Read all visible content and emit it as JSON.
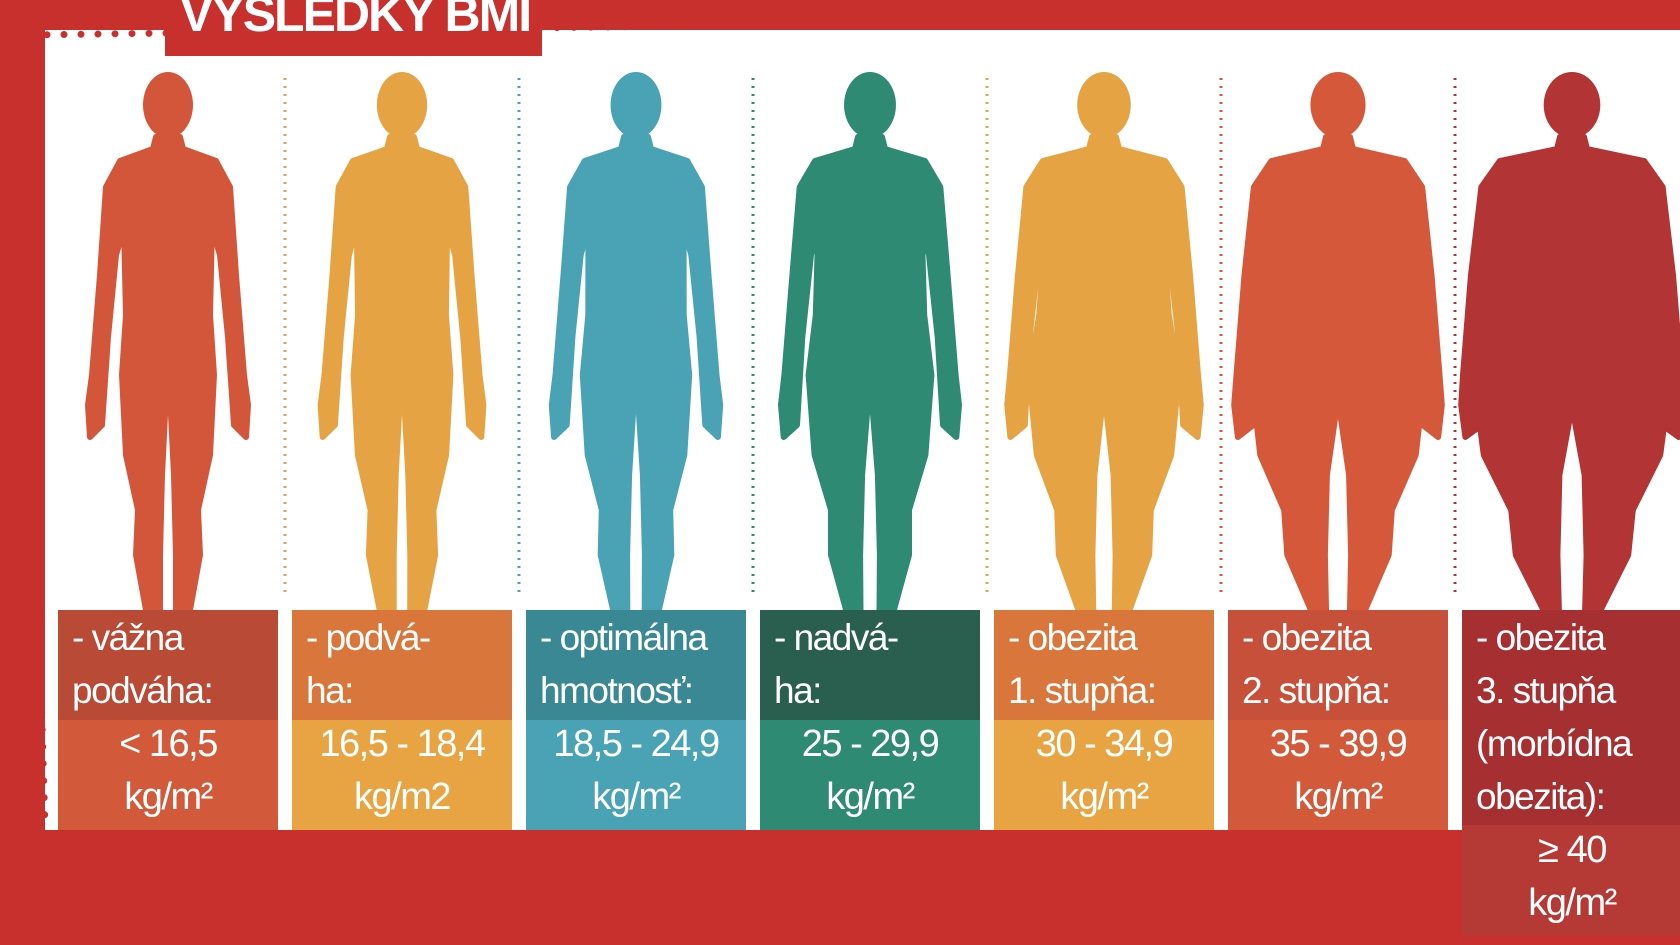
{
  "title": "VÝSLEDKY BMI",
  "columns": [
    {
      "label": [
        "- vážna",
        "podváha:"
      ],
      "range": [
        "< 16,5",
        "kg/m²"
      ]
    },
    {
      "label": [
        "- podvá-",
        "ha:"
      ],
      "range": [
        "16,5 - 18,4",
        "kg/m2"
      ]
    },
    {
      "label": [
        "- optimálna",
        "hmotnosť:"
      ],
      "range": [
        "18,5 - 24,9",
        "kg/m²"
      ]
    },
    {
      "label": [
        "- nadvá-",
        "ha:"
      ],
      "range": [
        "25 - 29,9",
        "kg/m²"
      ]
    },
    {
      "label": [
        "- obezita",
        "1. stupňa:"
      ],
      "range": [
        "30 - 34,9",
        "kg/m²"
      ]
    },
    {
      "label": [
        "- obezita",
        "2. stupňa:"
      ],
      "range": [
        "35 - 39,9",
        "kg/m²"
      ]
    },
    {
      "label": [
        "- obezita",
        "3. stupňa",
        "(morbídna",
        "obezita):"
      ],
      "range": [
        "≥ 40",
        "kg/m²"
      ]
    }
  ]
}
